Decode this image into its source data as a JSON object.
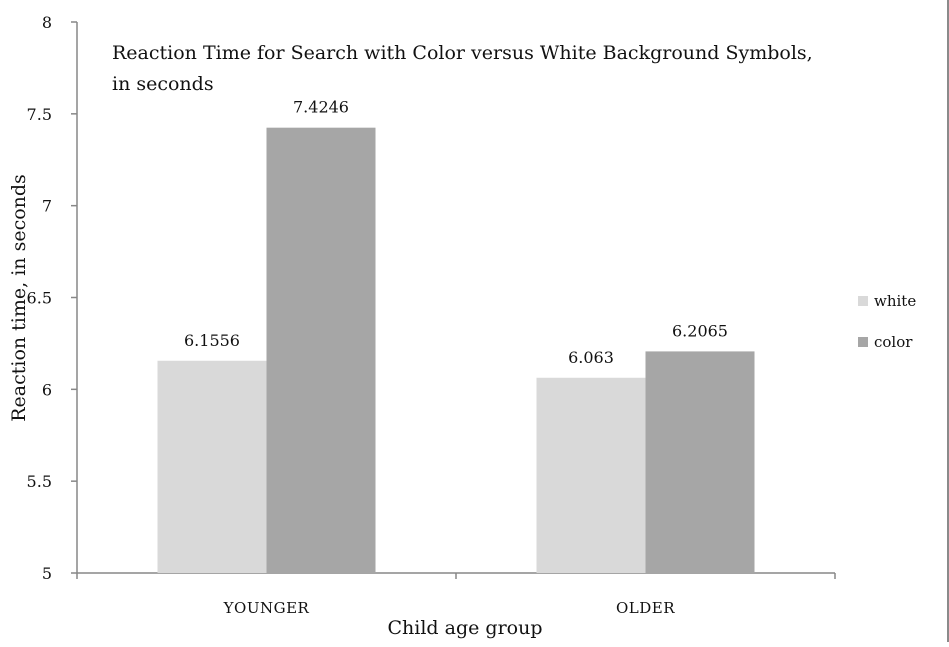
{
  "chart_data": {
    "type": "bar",
    "title": "Reaction Time for Search with Color versus White Background Symbols, in seconds",
    "title_lines": [
      "Reaction Time for Search with Color versus White Background Symbols,",
      "in seconds"
    ],
    "xlabel": "Child age group",
    "ylabel": "Reaction time, in seconds",
    "categories": [
      "YOUNGER",
      "OLDER"
    ],
    "series": [
      {
        "name": "white",
        "values": [
          6.1556,
          6.063
        ],
        "color": "#d9d9d9"
      },
      {
        "name": "color",
        "values": [
          7.4246,
          6.2065
        ],
        "color": "#a6a6a6"
      }
    ],
    "data_labels": [
      [
        "6.1556",
        "6.063"
      ],
      [
        "7.4246",
        "6.2065"
      ]
    ],
    "ylim": [
      5,
      8
    ],
    "yticks": [
      5,
      5.5,
      6,
      6.5,
      7,
      7.5,
      8
    ],
    "ytick_labels": [
      "5",
      "5.5",
      "6",
      "6.5",
      "7",
      "7.5",
      "8"
    ],
    "grid": false,
    "legend_position": "right"
  }
}
